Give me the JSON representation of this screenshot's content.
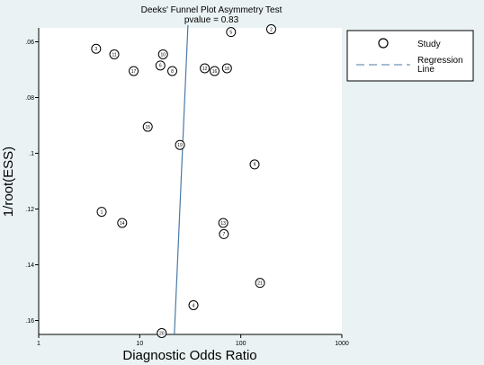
{
  "chart_data": {
    "type": "scatter",
    "title": "Deeks' Funnel Plot Asymmetry Test",
    "subtitle": "pvalue =   0.83",
    "xlabel": "Diagnostic Odds Ratio",
    "ylabel": "1/root(ESS)",
    "x_scale": "log",
    "xlim": [
      1,
      1000
    ],
    "ylim": [
      0.055,
      0.165
    ],
    "y_reversed": true,
    "x_ticks": [
      "1",
      "10",
      "100",
      "1000"
    ],
    "y_ticks": [
      ".06",
      ".08",
      ".1",
      ".12",
      ".14",
      ".16"
    ],
    "series": [
      {
        "name": "Study",
        "points": [
          {
            "label": "1",
            "x": 4.2,
            "y": 0.121
          },
          {
            "label": "2",
            "x": 200,
            "y": 0.0555
          },
          {
            "label": "3",
            "x": 3.7,
            "y": 0.0625
          },
          {
            "label": "4",
            "x": 34,
            "y": 0.1545
          },
          {
            "label": "5",
            "x": 80,
            "y": 0.0565
          },
          {
            "label": "6",
            "x": 16,
            "y": 0.0685
          },
          {
            "label": "7",
            "x": 68,
            "y": 0.129
          },
          {
            "label": "8",
            "x": 21,
            "y": 0.0705
          },
          {
            "label": "9",
            "x": 137,
            "y": 0.104
          },
          {
            "label": "10",
            "x": 17,
            "y": 0.0645
          },
          {
            "label": "11",
            "x": 5.6,
            "y": 0.0645
          },
          {
            "label": "12",
            "x": 44,
            "y": 0.0695
          },
          {
            "label": "13",
            "x": 67,
            "y": 0.125
          },
          {
            "label": "14",
            "x": 6.7,
            "y": 0.125
          },
          {
            "label": "15",
            "x": 12,
            "y": 0.0905
          },
          {
            "label": "16",
            "x": 55,
            "y": 0.0705
          },
          {
            "label": "17",
            "x": 8.7,
            "y": 0.0705
          },
          {
            "label": "18",
            "x": 73,
            "y": 0.0695
          },
          {
            "label": "19",
            "x": 25,
            "y": 0.097
          },
          {
            "label": "20",
            "x": 16.5,
            "y": 0.1645
          },
          {
            "label": "21",
            "x": 155,
            "y": 0.1465
          }
        ]
      },
      {
        "name": "Regression Line",
        "type": "line",
        "points": [
          {
            "x": 22,
            "y": 0.165
          },
          {
            "x": 30,
            "y": 0.054
          }
        ]
      }
    ],
    "legend": {
      "position": "right",
      "entries": [
        "Study",
        "Regression Line"
      ]
    },
    "colors": {
      "background": "#eaf2f3",
      "plot_background": "#ffffff",
      "regression": "#4a7aa8"
    }
  }
}
